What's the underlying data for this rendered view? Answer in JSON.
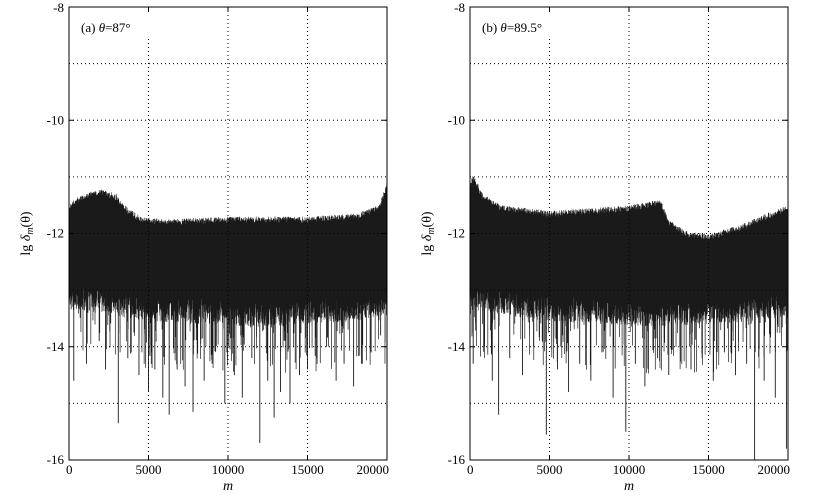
{
  "chart_data": [
    {
      "type": "line",
      "panel_label": "(a)",
      "theta_symbol": "θ",
      "theta_value": "=87°",
      "xlabel": "m",
      "ylabel_prefix": "lg ",
      "ylabel_delta": "δ",
      "ylabel_sub": "m",
      "ylabel_arg": "(θ)",
      "xlim": [
        0,
        20000
      ],
      "ylim": [
        -16,
        -8
      ],
      "xticks": [
        0,
        5000,
        10000,
        15000,
        20000
      ],
      "yticks": [
        -16,
        -14,
        -12,
        -10,
        -8
      ],
      "xtick_labels": [
        "0",
        "5000",
        "10000",
        "15000",
        "20000"
      ],
      "ytick_labels": [
        "-16",
        "-14",
        "-12",
        "-10",
        "-8"
      ],
      "grid": true,
      "series_color": "#1a1a1a",
      "envelope_upper": [
        [
          0,
          -11.5
        ],
        [
          500,
          -11.35
        ],
        [
          2000,
          -11.2
        ],
        [
          3000,
          -11.3
        ],
        [
          3500,
          -11.5
        ],
        [
          4500,
          -11.7
        ],
        [
          6000,
          -11.75
        ],
        [
          10000,
          -11.7
        ],
        [
          15000,
          -11.7
        ],
        [
          18000,
          -11.65
        ],
        [
          19500,
          -11.5
        ],
        [
          20000,
          -11.1
        ]
      ],
      "envelope_lower": [
        [
          0,
          -13.0
        ],
        [
          3000,
          -13.3
        ],
        [
          6000,
          -13.4
        ],
        [
          12000,
          -13.4
        ],
        [
          18000,
          -13.3
        ],
        [
          20000,
          -13.2
        ]
      ],
      "dense_lower": [
        [
          0,
          -12.9
        ],
        [
          5000,
          -13.1
        ],
        [
          12000,
          -13.2
        ],
        [
          18000,
          -13.1
        ],
        [
          20000,
          -13.0
        ]
      ],
      "spikes": [
        [
          300,
          -14.6
        ],
        [
          1100,
          -14.3
        ],
        [
          1900,
          -13.9
        ],
        [
          2300,
          -14.4
        ],
        [
          3100,
          -15.35
        ],
        [
          3700,
          -14.2
        ],
        [
          4400,
          -14.5
        ],
        [
          5000,
          -14.8
        ],
        [
          5400,
          -14.4
        ],
        [
          5900,
          -14.9
        ],
        [
          6300,
          -15.2
        ],
        [
          6800,
          -14.4
        ],
        [
          7300,
          -14.7
        ],
        [
          7800,
          -15.15
        ],
        [
          8500,
          -14.6
        ],
        [
          9000,
          -14.3
        ],
        [
          9800,
          -15.0
        ],
        [
          10400,
          -14.5
        ],
        [
          10900,
          -14.9
        ],
        [
          11500,
          -14.2
        ],
        [
          12000,
          -15.7
        ],
        [
          12500,
          -14.6
        ],
        [
          12900,
          -15.25
        ],
        [
          13300,
          -14.8
        ],
        [
          13900,
          -15.0
        ],
        [
          14500,
          -14.5
        ],
        [
          15000,
          -14.4
        ],
        [
          15600,
          -14.2
        ],
        [
          16200,
          -14.0
        ],
        [
          16800,
          -14.6
        ],
        [
          17300,
          -14.3
        ],
        [
          17900,
          -14.7
        ],
        [
          18400,
          -14.3
        ],
        [
          19000,
          -14.1
        ],
        [
          19600,
          -13.8
        ]
      ]
    },
    {
      "type": "line",
      "panel_label": "(b)",
      "theta_symbol": "θ",
      "theta_value": "=89.5°",
      "xlabel": "m",
      "ylabel_prefix": "lg ",
      "ylabel_delta": "δ",
      "ylabel_sub": "m",
      "ylabel_arg": "(θ)",
      "xlim": [
        0,
        20000
      ],
      "ylim": [
        -16,
        -8
      ],
      "xticks": [
        0,
        5000,
        10000,
        15000,
        20000
      ],
      "yticks": [
        -16,
        -14,
        -12,
        -10,
        -8
      ],
      "xtick_labels": [
        "0",
        "5000",
        "10000",
        "15000",
        "20000"
      ],
      "ytick_labels": [
        "-16",
        "-14",
        "-12",
        "-10",
        "-8"
      ],
      "grid": true,
      "series_color": "#1a1a1a",
      "envelope_upper": [
        [
          0,
          -11.1
        ],
        [
          200,
          -10.95
        ],
        [
          800,
          -11.3
        ],
        [
          2000,
          -11.5
        ],
        [
          5000,
          -11.6
        ],
        [
          10000,
          -11.5
        ],
        [
          12000,
          -11.4
        ],
        [
          12500,
          -11.75
        ],
        [
          13500,
          -11.95
        ],
        [
          15000,
          -12.0
        ],
        [
          17000,
          -11.85
        ],
        [
          19000,
          -11.6
        ],
        [
          20000,
          -11.5
        ]
      ],
      "envelope_lower": [
        [
          0,
          -13.0
        ],
        [
          3000,
          -13.3
        ],
        [
          8000,
          -13.4
        ],
        [
          12000,
          -13.4
        ],
        [
          16000,
          -13.4
        ],
        [
          20000,
          -13.3
        ]
      ],
      "dense_lower": [
        [
          0,
          -12.9
        ],
        [
          5000,
          -13.1
        ],
        [
          12000,
          -13.2
        ],
        [
          18000,
          -13.1
        ],
        [
          20000,
          -13.0
        ]
      ],
      "spikes": [
        [
          200,
          -14.3
        ],
        [
          900,
          -14.0
        ],
        [
          1400,
          -14.6
        ],
        [
          1800,
          -15.2
        ],
        [
          2500,
          -14.2
        ],
        [
          3300,
          -14.5
        ],
        [
          4000,
          -14.0
        ],
        [
          4800,
          -15.55
        ],
        [
          5500,
          -14.4
        ],
        [
          6200,
          -14.8
        ],
        [
          6900,
          -14.3
        ],
        [
          7600,
          -14.6
        ],
        [
          8300,
          -14.1
        ],
        [
          9000,
          -14.9
        ],
        [
          9800,
          -15.5
        ],
        [
          10400,
          -14.3
        ],
        [
          11000,
          -14.7
        ],
        [
          11800,
          -14.2
        ],
        [
          12500,
          -14.5
        ],
        [
          13200,
          -14.0
        ],
        [
          13900,
          -14.4
        ],
        [
          14600,
          -14.2
        ],
        [
          15300,
          -14.6
        ],
        [
          16000,
          -14.1
        ],
        [
          16700,
          -14.5
        ],
        [
          17400,
          -14.3
        ],
        [
          17900,
          -16.0
        ],
        [
          18500,
          -14.6
        ],
        [
          19200,
          -14.9
        ],
        [
          19900,
          -15.8
        ]
      ]
    }
  ]
}
